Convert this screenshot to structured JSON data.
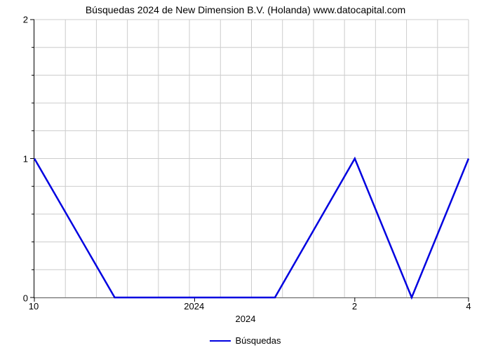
{
  "chart": {
    "type": "line",
    "title": "Búsquedas 2024 de New Dimension B.V. (Holanda) www.datocapital.com",
    "title_fontsize": 14,
    "background_color": "#ffffff",
    "line_color": "#0000e0",
    "line_width": 2.5,
    "grid_color": "#cccccc",
    "axis_color": "#000000",
    "ylim": [
      0,
      2
    ],
    "ytick_major": [
      0,
      1,
      2
    ],
    "yminor_count": 4,
    "x_tick_labels": [
      "10",
      "2024",
      "2",
      "4"
    ],
    "x_tick_positions": [
      0.0,
      0.369,
      0.738,
      1.0
    ],
    "x_axis_label": "2024",
    "legend_label": "Búsquedas",
    "data_points": [
      {
        "x": 0.0,
        "y": 1
      },
      {
        "x": 0.185,
        "y": 0
      },
      {
        "x": 0.554,
        "y": 0
      },
      {
        "x": 0.738,
        "y": 1
      },
      {
        "x": 0.869,
        "y": 0
      },
      {
        "x": 1.0,
        "y": 1
      }
    ]
  }
}
